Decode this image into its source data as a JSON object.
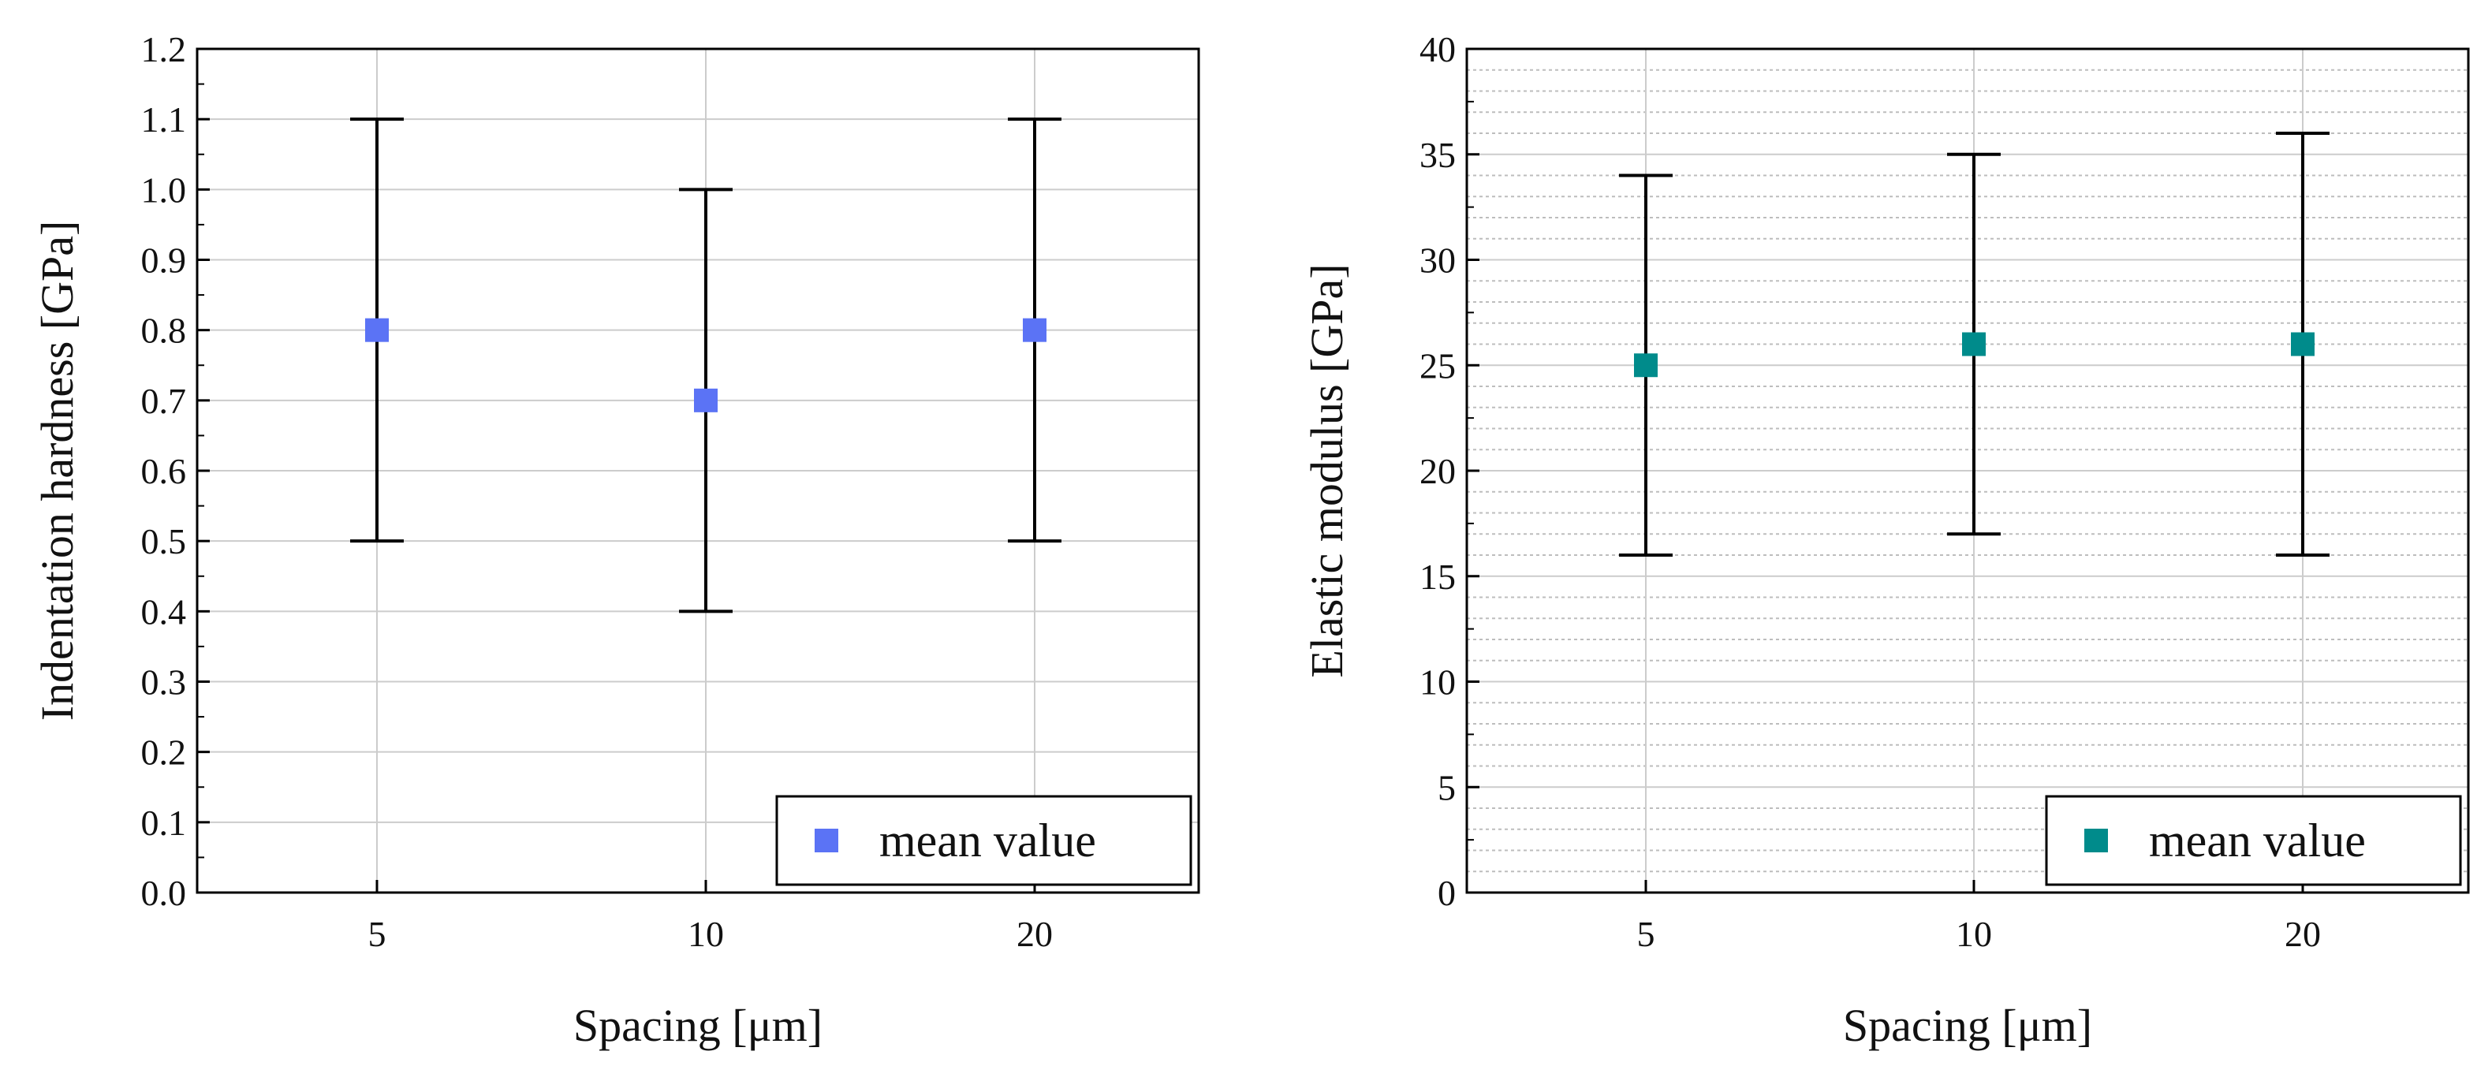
{
  "chart_data": [
    {
      "type": "scatter",
      "title": "",
      "xlabel": "Spacing [μm]",
      "ylabel": "Indentation hardness [GPa]",
      "categories": [
        "5",
        "10",
        "20"
      ],
      "series": [
        {
          "name": "mean value",
          "color": "#5b73f5",
          "values": [
            0.8,
            0.7,
            0.8
          ],
          "error_low": [
            0.5,
            0.4,
            0.5
          ],
          "error_high": [
            1.1,
            1.0,
            1.1
          ]
        }
      ],
      "ylim": [
        0.0,
        1.2
      ],
      "yticks": [
        "0.0",
        "0.1",
        "0.2",
        "0.3",
        "0.4",
        "0.5",
        "0.6",
        "0.7",
        "0.8",
        "0.9",
        "1.0",
        "1.1",
        "1.2"
      ],
      "grid": true,
      "minor_grid": false,
      "legend": "bottom-right"
    },
    {
      "type": "scatter",
      "title": "",
      "xlabel": "Spacing [μm]",
      "ylabel": "Elastic modulus [GPa]",
      "categories": [
        "5",
        "10",
        "20"
      ],
      "series": [
        {
          "name": "mean value",
          "color": "#008b8b",
          "values": [
            25,
            26,
            26
          ],
          "error_low": [
            16,
            17,
            16
          ],
          "error_high": [
            34,
            35,
            36
          ]
        }
      ],
      "ylim": [
        0,
        40
      ],
      "yticks": [
        "0",
        "5",
        "10",
        "15",
        "20",
        "25",
        "30",
        "35",
        "40"
      ],
      "grid": true,
      "minor_grid": true,
      "legend": "bottom-right"
    }
  ]
}
